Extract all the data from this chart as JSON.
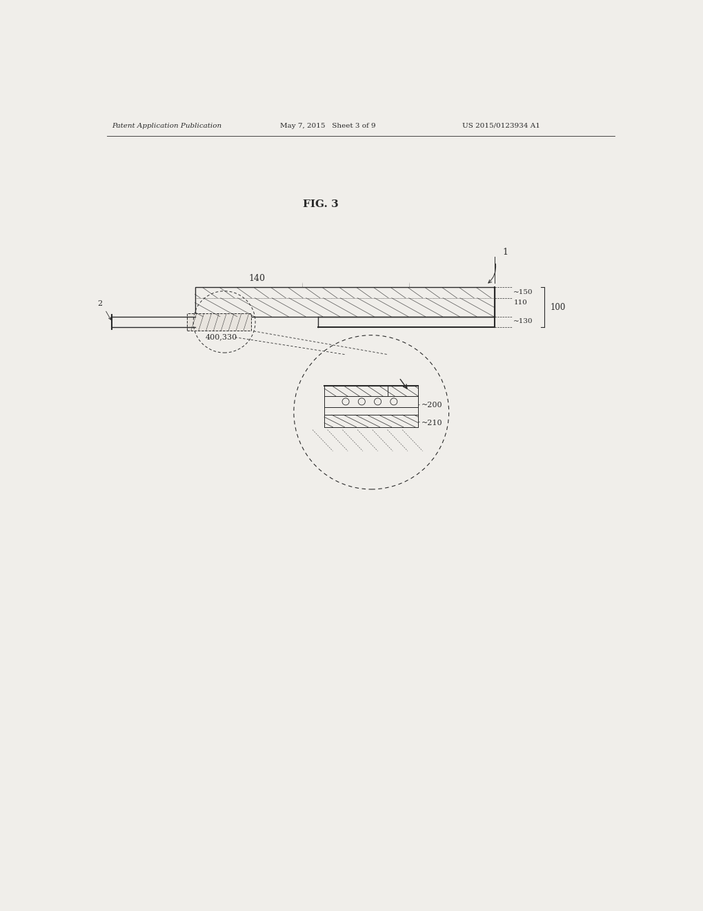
{
  "header_left": "Patent Application Publication",
  "header_mid": "May 7, 2015   Sheet 3 of 9",
  "header_right": "US 2015/0123934 A1",
  "fig_label": "FIG. 3",
  "bg_color": "#f0eeea",
  "line_color": "#2a2a2a",
  "labels": {
    "1": "1",
    "140": "140",
    "150": "150",
    "110": "110",
    "100": "100",
    "130": "130",
    "2": "2",
    "400_330": "400,330",
    "200": "200",
    "210": "210"
  }
}
